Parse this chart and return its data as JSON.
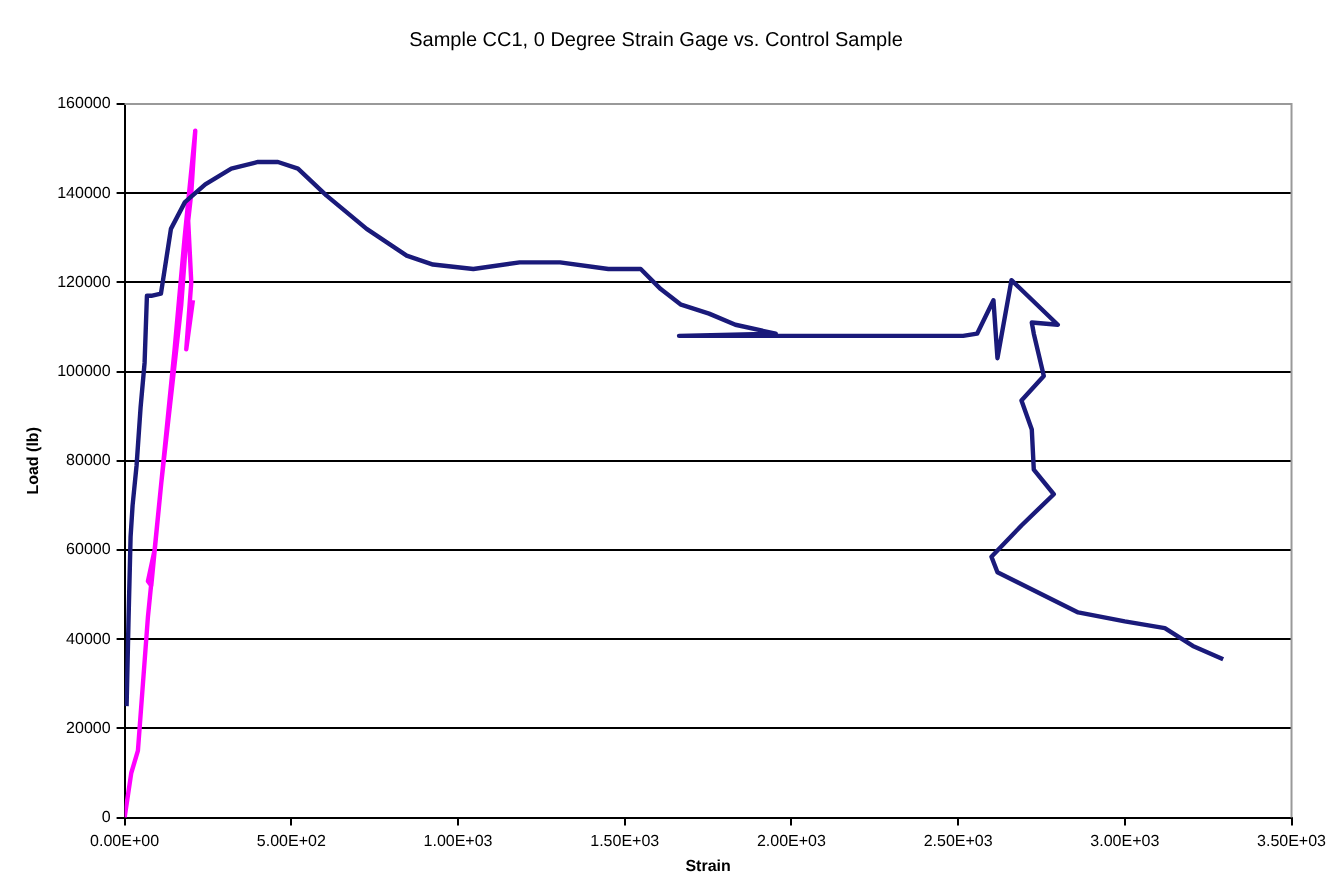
{
  "chart_data": {
    "type": "line",
    "title": "Sample CC1, 0 Degree Strain Gage vs. Control Sample",
    "xlabel": "Strain",
    "ylabel": "Load (lb)",
    "xlim": [
      0,
      3500
    ],
    "xticks": [
      {
        "value": 0,
        "label": "0.00E+00"
      },
      {
        "value": 500,
        "label": "5.00E+02"
      },
      {
        "value": 1000,
        "label": "1.00E+03"
      },
      {
        "value": 1500,
        "label": "1.50E+03"
      },
      {
        "value": 2000,
        "label": "2.00E+03"
      },
      {
        "value": 2500,
        "label": "2.50E+03"
      },
      {
        "value": 3000,
        "label": "3.00E+03"
      },
      {
        "value": 3500,
        "label": "3.50E+03"
      }
    ],
    "ylim": [
      0,
      160000
    ],
    "yticks": [
      0,
      20000,
      40000,
      60000,
      80000,
      100000,
      120000,
      140000,
      160000
    ],
    "grid": "y",
    "legend": false,
    "marker": "none",
    "line_style": "solid",
    "series": [
      {
        "color": "#1a1a7a",
        "x": [
          6,
          12,
          18,
          24,
          36,
          48,
          60,
          67,
          80,
          109,
          139,
          181,
          242,
          320,
          400,
          460,
          520,
          605,
          726,
          846,
          925,
          1046,
          1185,
          1306,
          1451,
          1548,
          1608,
          1669,
          1753,
          1832,
          1953,
          1663,
          2515,
          2557,
          2606,
          2618,
          2660,
          2799,
          2721,
          2727,
          2757,
          2690,
          2721,
          2727,
          2787,
          2690,
          2600,
          2618,
          2860,
          3000,
          3120,
          3204,
          3295
        ],
        "values": [
          25000,
          45000,
          63000,
          70000,
          79000,
          92000,
          102000,
          117000,
          117000,
          117500,
          132000,
          138000,
          142000,
          145500,
          147000,
          147000,
          145500,
          139500,
          132000,
          126000,
          124000,
          123000,
          124500,
          124500,
          123000,
          123000,
          118500,
          115000,
          113000,
          110500,
          108500,
          108000,
          108000,
          108500,
          116000,
          103000,
          120500,
          110500,
          111000,
          108500,
          99000,
          93500,
          87000,
          78000,
          72500,
          65500,
          58500,
          55000,
          46000,
          44000,
          42500,
          38500,
          35500
        ]
      },
      {
        "color": "#ff00ff",
        "x": [
          0,
          20,
          40,
          70,
          110,
          150,
          180,
          212,
          200,
          170,
          130,
          90,
          70,
          80,
          110,
          140,
          170,
          190,
          200,
          185,
          205
        ],
        "values": [
          0,
          10000,
          15000,
          45000,
          75000,
          105000,
          130000,
          154000,
          140000,
          120000,
          90000,
          60000,
          53000,
          52000,
          75000,
          95000,
          115000,
          135000,
          120000,
          105000,
          116000
        ]
      }
    ]
  }
}
